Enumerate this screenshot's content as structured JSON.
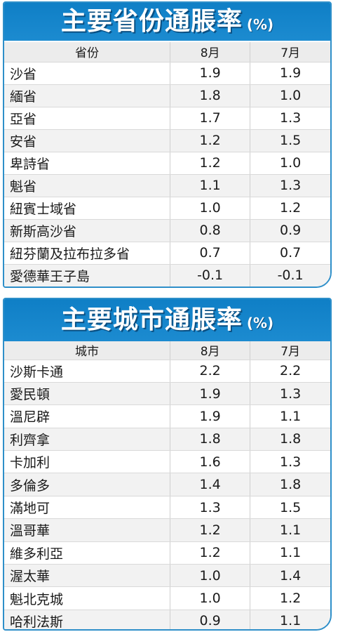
{
  "provinces": {
    "title": "主要省份通脹率",
    "unit": "(%)",
    "headers": {
      "name": "省份",
      "aug": "8月",
      "jul": "7月"
    },
    "rows": [
      {
        "name": "沙省",
        "aug": "1.9",
        "jul": "1.9"
      },
      {
        "name": "緬省",
        "aug": "1.8",
        "jul": "1.0"
      },
      {
        "name": "亞省",
        "aug": "1.7",
        "jul": "1.3"
      },
      {
        "name": "安省",
        "aug": "1.2",
        "jul": "1.5"
      },
      {
        "name": "卑詩省",
        "aug": "1.2",
        "jul": "1.0"
      },
      {
        "name": "魁省",
        "aug": "1.1",
        "jul": "1.3"
      },
      {
        "name": "紐賓士域省",
        "aug": "1.0",
        "jul": "1.2"
      },
      {
        "name": "新斯高沙省",
        "aug": "0.8",
        "jul": "0.9"
      },
      {
        "name": "紐芬蘭及拉布拉多省",
        "aug": "0.7",
        "jul": "0.7"
      },
      {
        "name": "愛德華王子島",
        "aug": "-0.1",
        "jul": "-0.1"
      }
    ]
  },
  "cities": {
    "title": "主要城市通脹率",
    "unit": "(%)",
    "headers": {
      "name": "城市",
      "aug": "8月",
      "jul": "7月"
    },
    "rows": [
      {
        "name": "沙斯卡通",
        "aug": "2.2",
        "jul": "2.2"
      },
      {
        "name": "愛民頓",
        "aug": "1.9",
        "jul": "1.3"
      },
      {
        "name": "溫尼辟",
        "aug": "1.9",
        "jul": "1.1"
      },
      {
        "name": "利齊拿",
        "aug": "1.8",
        "jul": "1.8"
      },
      {
        "name": "卡加利",
        "aug": "1.6",
        "jul": "1.3"
      },
      {
        "name": "多倫多",
        "aug": "1.4",
        "jul": "1.8"
      },
      {
        "name": "滿地可",
        "aug": "1.3",
        "jul": "1.5"
      },
      {
        "name": "溫哥華",
        "aug": "1.2",
        "jul": "1.1"
      },
      {
        "name": "維多利亞",
        "aug": "1.2",
        "jul": "1.1"
      },
      {
        "name": "渥太華",
        "aug": "1.0",
        "jul": "1.4"
      },
      {
        "name": "魁北克城",
        "aug": "1.0",
        "jul": "1.2"
      },
      {
        "name": "哈利法斯",
        "aug": "0.9",
        "jul": "1.1"
      }
    ]
  },
  "colors": {
    "banner": "#1c8bd0",
    "border": "#2e8fc9",
    "stripe": "#f2f2f2"
  }
}
